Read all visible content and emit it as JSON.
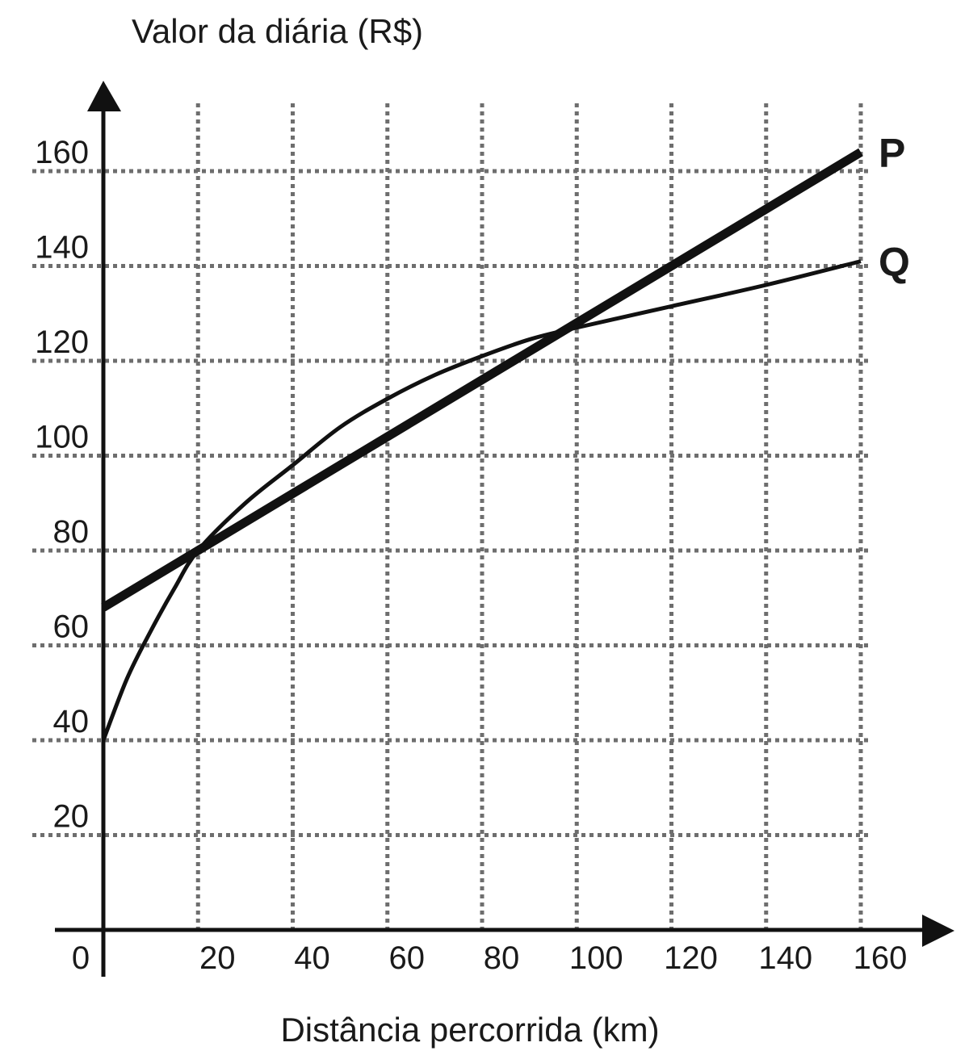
{
  "chart_data": {
    "type": "line",
    "ylabel": "Valor da diária (R$)",
    "xlabel": "Distância percorrida (km)",
    "origin_label": "0",
    "x_ticks": [
      "20",
      "40",
      "60",
      "80",
      "100",
      "120",
      "140",
      "160"
    ],
    "y_ticks": [
      "20",
      "40",
      "60",
      "80",
      "100",
      "120",
      "140",
      "160"
    ],
    "xlim": [
      0,
      160
    ],
    "ylim": [
      0,
      160
    ],
    "grid": true,
    "series": [
      {
        "name": "P",
        "x": [
          0,
          20,
          40,
          60,
          80,
          100,
          120,
          140,
          160
        ],
        "y": [
          68,
          80,
          92,
          104,
          116,
          128,
          140,
          152,
          164
        ]
      },
      {
        "name": "Q",
        "x": [
          0,
          5,
          10,
          15,
          20,
          30,
          40,
          50,
          60,
          70,
          80,
          90,
          100,
          120,
          140,
          160
        ],
        "y": [
          40,
          53,
          63,
          72,
          80,
          90,
          98,
          106,
          112,
          117,
          121,
          124.5,
          127,
          131.5,
          136,
          141
        ]
      }
    ]
  }
}
